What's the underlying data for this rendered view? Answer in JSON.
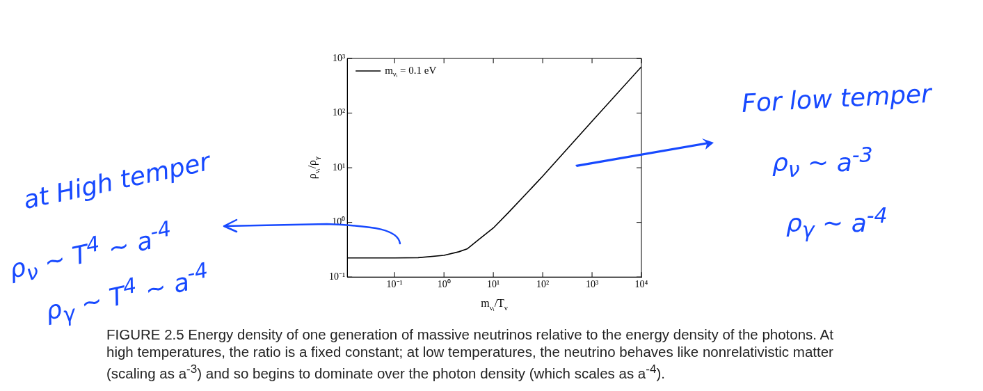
{
  "chart_data": {
    "type": "line",
    "xlabel": "m$_{νᵢ}$/T$_{ν}$",
    "ylabel": "ρ$_{νᵢ}$/ρ$_{γ}$",
    "log": "xy",
    "xlim": [
      0.011,
      10000
    ],
    "ylim": [
      0.1,
      1000
    ],
    "xticks": [
      {
        "value": 0.1,
        "label": "10⁻¹"
      },
      {
        "value": 1,
        "label": "10⁰"
      },
      {
        "value": 10,
        "label": "10¹"
      },
      {
        "value": 100,
        "label": "10²"
      },
      {
        "value": 1000,
        "label": "10³"
      },
      {
        "value": 10000,
        "label": "10⁴"
      }
    ],
    "yticks": [
      {
        "value": 0.1,
        "label": "10⁻¹"
      },
      {
        "value": 1,
        "label": "10⁰"
      },
      {
        "value": 10,
        "label": "10¹"
      },
      {
        "value": 100,
        "label": "10²"
      },
      {
        "value": 1000,
        "label": "10³"
      }
    ],
    "legend": "top left",
    "marker": "none",
    "line_style": "solid",
    "series": [
      {
        "name": "m$_{νᵢ}$ = 0.1 eV",
        "color": "#000000",
        "x": [
          0.011,
          0.1,
          0.3,
          1,
          2,
          3,
          5,
          10,
          20,
          50,
          100,
          1000,
          10000
        ],
        "values": [
          0.224,
          0.224,
          0.226,
          0.25,
          0.29,
          0.33,
          0.48,
          0.79,
          1.5,
          3.6,
          7.0,
          71,
          705
        ]
      }
    ],
    "annotations": [
      "at High temper",
      "ρ$_{ν}$ ∼ T$^{4}$ ∼ a$^{-4}$",
      "ρ$_{γ}$ ∼ T$^{4}$ ∼ a$^{-4}$",
      "For low temper",
      "ρ$_{ν}$ ∼ a$^{-3}$",
      "ρ$_{γ}$ ∼ a$^{-4}$",
      "FIGURE 2.5 Energy density of one generation of massive neutrinos relative to the energy density of the photons. At high temperatures, the ratio is a fixed constant; at low temperatures, the neutrino behaves like nonrelativistic matter (scaling as a$^{-3}$) and so begins to dominate over the photon density (which scales as a$^{-4}$)."
    ]
  }
}
